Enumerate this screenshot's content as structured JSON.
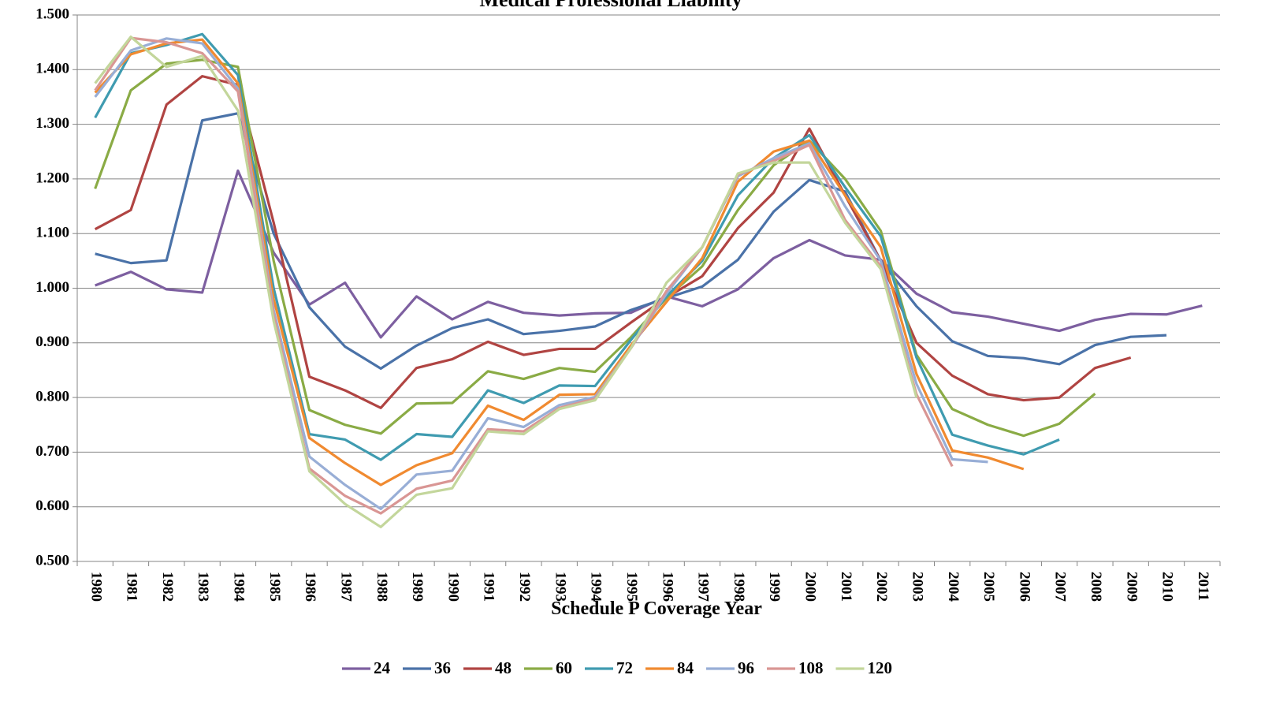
{
  "chart_data": {
    "type": "line",
    "title": "Medical Professional Liability",
    "x_label": "Schedule P Coverage Year",
    "categories": [
      "1980",
      "1981",
      "1982",
      "1983",
      "1984",
      "1985",
      "1986",
      "1987",
      "1988",
      "1989",
      "1990",
      "1991",
      "1992",
      "1993",
      "1994",
      "1995",
      "1996",
      "1997",
      "1998",
      "1999",
      "2000",
      "2001",
      "2002",
      "2003",
      "2004",
      "2005",
      "2006",
      "2007",
      "2008",
      "2009",
      "2010",
      "2011"
    ],
    "ylim": [
      0.5,
      1.5
    ],
    "yticks": [
      {
        "value": 0.5,
        "label": "0.500"
      },
      {
        "value": 0.6,
        "label": "0.600"
      },
      {
        "value": 0.7,
        "label": "0.700"
      },
      {
        "value": 0.8,
        "label": "0.800"
      },
      {
        "value": 0.9,
        "label": "0.900"
      },
      {
        "value": 1.0,
        "label": "1.000"
      },
      {
        "value": 1.1,
        "label": "1.100"
      },
      {
        "value": 1.2,
        "label": "1.200"
      },
      {
        "value": 1.3,
        "label": "1.300"
      },
      {
        "value": 1.4,
        "label": "1.400"
      },
      {
        "value": 1.5,
        "label": "1.500"
      }
    ],
    "grid": true,
    "legend": "bottom",
    "series": [
      {
        "name": "24",
        "color": "#7d5fa0",
        "values": [
          1.005,
          1.03,
          0.998,
          0.992,
          1.215,
          1.065,
          0.97,
          1.01,
          0.91,
          0.985,
          0.943,
          0.975,
          0.955,
          0.95,
          0.954,
          0.955,
          0.985,
          0.967,
          0.998,
          1.055,
          1.088,
          1.06,
          1.052,
          0.99,
          0.956,
          0.948,
          0.935,
          0.922,
          0.942,
          0.953,
          0.952,
          0.968
        ]
      },
      {
        "name": "36",
        "color": "#4a72a8",
        "values": [
          1.063,
          1.046,
          1.051,
          1.307,
          1.32,
          1.1,
          0.965,
          0.893,
          0.853,
          0.895,
          0.927,
          0.943,
          0.916,
          0.922,
          0.93,
          0.96,
          0.982,
          1.003,
          1.052,
          1.14,
          1.198,
          1.177,
          1.05,
          0.967,
          0.903,
          0.876,
          0.872,
          0.861,
          0.896,
          0.911,
          0.914,
          null
        ]
      },
      {
        "name": "48",
        "color": "#b04442",
        "values": [
          1.108,
          1.143,
          1.336,
          1.388,
          1.372,
          1.12,
          0.838,
          0.813,
          0.781,
          0.854,
          0.87,
          0.902,
          0.878,
          0.889,
          0.889,
          0.937,
          0.983,
          1.022,
          1.11,
          1.175,
          1.292,
          1.17,
          1.05,
          0.9,
          0.84,
          0.806,
          0.795,
          0.8,
          0.854,
          0.873,
          null,
          null
        ]
      },
      {
        "name": "60",
        "color": "#8aab45",
        "values": [
          1.182,
          1.362,
          1.411,
          1.418,
          1.405,
          1.05,
          0.777,
          0.75,
          0.734,
          0.789,
          0.79,
          0.848,
          0.834,
          0.854,
          0.847,
          0.91,
          0.982,
          1.04,
          1.143,
          1.225,
          1.27,
          1.2,
          1.105,
          0.878,
          0.779,
          0.75,
          0.73,
          0.752,
          0.807,
          null,
          null,
          null
        ]
      },
      {
        "name": "72",
        "color": "#3f9bb0",
        "values": [
          1.312,
          1.43,
          1.445,
          1.465,
          1.39,
          1.0,
          0.733,
          0.723,
          0.686,
          0.733,
          0.728,
          0.813,
          0.79,
          0.822,
          0.821,
          0.905,
          0.985,
          1.05,
          1.17,
          1.238,
          1.28,
          1.185,
          1.095,
          0.873,
          0.732,
          0.712,
          0.696,
          0.723,
          null,
          null,
          null,
          null
        ]
      },
      {
        "name": "84",
        "color": "#f08a30",
        "values": [
          1.358,
          1.428,
          1.448,
          1.455,
          1.375,
          0.98,
          0.726,
          0.68,
          0.64,
          0.676,
          0.698,
          0.785,
          0.759,
          0.805,
          0.806,
          0.895,
          0.975,
          1.055,
          1.195,
          1.25,
          1.27,
          1.17,
          1.075,
          0.843,
          0.703,
          0.69,
          0.669,
          null,
          null,
          null,
          null,
          null
        ]
      },
      {
        "name": "96",
        "color": "#98aed6",
        "values": [
          1.35,
          1.435,
          1.457,
          1.448,
          1.365,
          0.96,
          0.692,
          0.64,
          0.596,
          0.659,
          0.666,
          0.762,
          0.746,
          0.786,
          0.801,
          0.89,
          0.99,
          1.075,
          1.205,
          1.238,
          1.265,
          1.15,
          1.05,
          0.825,
          0.687,
          0.682,
          null,
          null,
          null,
          null,
          null,
          null
        ]
      },
      {
        "name": "108",
        "color": "#d99694",
        "values": [
          1.362,
          1.458,
          1.45,
          1.43,
          1.36,
          0.95,
          0.67,
          0.62,
          0.588,
          0.633,
          0.648,
          0.742,
          0.738,
          0.781,
          0.798,
          0.89,
          0.995,
          1.075,
          1.208,
          1.233,
          1.262,
          1.125,
          1.04,
          0.806,
          0.674,
          null,
          null,
          null,
          null,
          null,
          null,
          null
        ]
      },
      {
        "name": "120",
        "color": "#c3d69b",
        "values": [
          1.375,
          1.46,
          1.405,
          1.425,
          1.325,
          0.94,
          0.665,
          0.605,
          0.563,
          0.622,
          0.634,
          0.738,
          0.733,
          0.779,
          0.795,
          0.89,
          1.01,
          1.075,
          1.21,
          1.23,
          1.23,
          1.12,
          1.035,
          0.8,
          null,
          null,
          null,
          null,
          null,
          null,
          null,
          null
        ]
      }
    ]
  }
}
